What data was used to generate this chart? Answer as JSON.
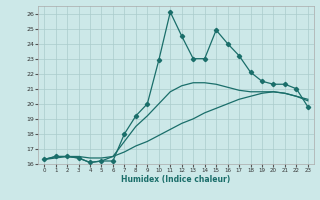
{
  "xlabel": "Humidex (Indice chaleur)",
  "xlim": [
    -0.5,
    23.5
  ],
  "ylim": [
    16,
    26.5
  ],
  "yticks": [
    16,
    17,
    18,
    19,
    20,
    21,
    22,
    23,
    24,
    25,
    26
  ],
  "xticks": [
    0,
    1,
    2,
    3,
    4,
    5,
    6,
    7,
    8,
    9,
    10,
    11,
    12,
    13,
    14,
    15,
    16,
    17,
    18,
    19,
    20,
    21,
    22,
    23
  ],
  "bg_color": "#cce8e8",
  "grid_color": "#aacccc",
  "line_color": "#1a6e6a",
  "series1_x": [
    0,
    1,
    2,
    3,
    4,
    5,
    6,
    7,
    8,
    9,
    10,
    11,
    12,
    13,
    14,
    15,
    16,
    17,
    18,
    19,
    20,
    21,
    22,
    23
  ],
  "series1_y": [
    16.3,
    16.5,
    16.5,
    16.4,
    16.1,
    16.2,
    16.2,
    18.0,
    19.2,
    20.0,
    22.9,
    26.1,
    24.5,
    23.0,
    23.0,
    24.9,
    24.0,
    23.2,
    22.1,
    21.5,
    21.3,
    21.3,
    21.0,
    19.8
  ],
  "series2_x": [
    0,
    1,
    2,
    3,
    4,
    5,
    6,
    7,
    8,
    9,
    10,
    11,
    12,
    13,
    14,
    15,
    16,
    17,
    18,
    19,
    20,
    21,
    22,
    23
  ],
  "series2_y": [
    16.3,
    16.4,
    16.5,
    16.5,
    16.4,
    16.4,
    16.5,
    16.8,
    17.2,
    17.5,
    17.9,
    18.3,
    18.7,
    19.0,
    19.4,
    19.7,
    20.0,
    20.3,
    20.5,
    20.7,
    20.8,
    20.7,
    20.5,
    20.3
  ],
  "series3_x": [
    0,
    1,
    2,
    3,
    4,
    5,
    6,
    7,
    8,
    9,
    10,
    11,
    12,
    13,
    14,
    15,
    16,
    17,
    18,
    19,
    20,
    21,
    22,
    23
  ],
  "series3_y": [
    16.3,
    16.5,
    16.5,
    16.4,
    16.1,
    16.2,
    16.5,
    17.5,
    18.5,
    19.2,
    20.0,
    20.8,
    21.2,
    21.4,
    21.4,
    21.3,
    21.1,
    20.9,
    20.8,
    20.8,
    20.8,
    20.7,
    20.5,
    20.2
  ]
}
